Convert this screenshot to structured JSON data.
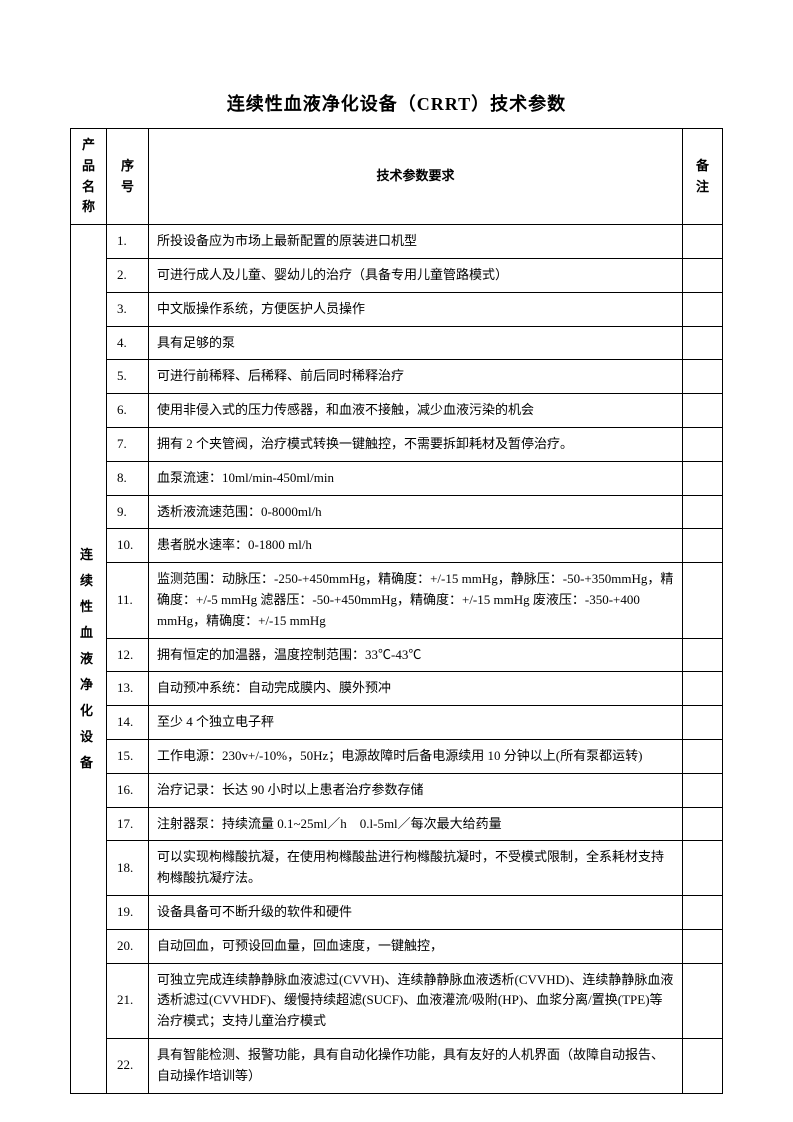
{
  "title": "连续性血液净化设备（CRRT）技术参数",
  "headers": {
    "name": "产品名称",
    "num": "序号",
    "req": "技术参数要求",
    "note": "备注"
  },
  "product_name": "连续性血液净化设备",
  "rows": [
    {
      "num": "1.",
      "req": "所投设备应为市场上最新配置的原装进口机型"
    },
    {
      "num": "2.",
      "req": "可进行成人及儿童、婴幼儿的治疗（具备专用儿童管路模式）"
    },
    {
      "num": "3.",
      "req": "中文版操作系统，方便医护人员操作"
    },
    {
      "num": "4.",
      "req": "具有足够的泵"
    },
    {
      "num": "5.",
      "req": "可进行前稀释、后稀释、前后同时稀释治疗"
    },
    {
      "num": "6.",
      "req": "使用非侵入式的压力传感器，和血液不接触，减少血液污染的机会"
    },
    {
      "num": "7.",
      "req": "拥有 2 个夹管阀，治疗模式转换一键触控，不需要拆卸耗材及暂停治疗。"
    },
    {
      "num": "8.",
      "req": "血泵流速：10ml/min-450ml/min"
    },
    {
      "num": "9.",
      "req": "透析液流速范围：0-8000ml/h"
    },
    {
      "num": "10.",
      "req": "患者脱水速率：0-1800 ml/h"
    },
    {
      "num": "11.",
      "req": "监测范围：动脉压：-250-+450mmHg，精确度：+/-15 mmHg，静脉压：-50-+350mmHg，精确度：+/-5 mmHg 滤器压：-50-+450mmHg，精确度：+/-15 mmHg 废液压：-350-+400 mmHg，精确度：+/-15 mmHg"
    },
    {
      "num": "12.",
      "req": "拥有恒定的加温器，温度控制范围：33℃-43℃"
    },
    {
      "num": "13.",
      "req": "自动预冲系统：自动完成膜内、膜外预冲"
    },
    {
      "num": "14.",
      "req": "至少 4 个独立电子秤"
    },
    {
      "num": "15.",
      "req": "工作电源：230v+/-10%，50Hz；电源故障时后备电源续用 10 分钟以上(所有泵都运转)"
    },
    {
      "num": "16.",
      "req": "治疗记录：长达 90 小时以上患者治疗参数存储"
    },
    {
      "num": "17.",
      "req": "注射器泵：持续流量 0.1~25ml／h　0.l-5ml／每次最大给药量"
    },
    {
      "num": "18.",
      "req": "可以实现枸橼酸抗凝，在使用枸橼酸盐进行枸橼酸抗凝时，不受模式限制，全系耗材支持枸橼酸抗凝疗法。"
    },
    {
      "num": "19.",
      "req": "设备具备可不断升级的软件和硬件"
    },
    {
      "num": "20.",
      "req": "自动回血，可预设回血量，回血速度，一键触控，"
    },
    {
      "num": "21.",
      "req": "可独立完成连续静静脉血液滤过(CVVH)、连续静静脉血液透析(CVVHD)、连续静静脉血液透析滤过(CVVHDF)、缓慢持续超滤(SUCF)、血液灌流/吸附(HP)、血浆分离/置换(TPE)等治疗模式；支持儿童治疗模式"
    },
    {
      "num": "22.",
      "req": "具有智能检测、报警功能，具有自动化操作功能，具有友好的人机界面（故障自动报告、自动操作培训等）"
    }
  ]
}
